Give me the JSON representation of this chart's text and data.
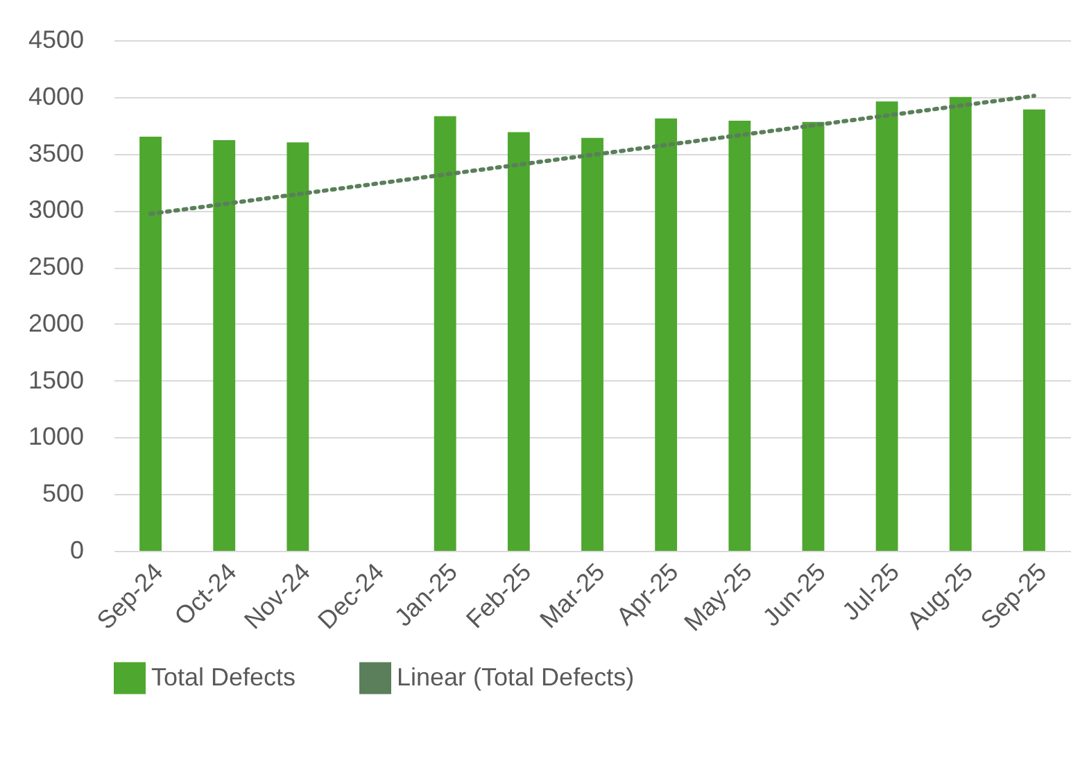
{
  "chart_data": {
    "type": "bar",
    "categories": [
      "Sep-24",
      "Oct-24",
      "Nov-24",
      "Dec-24",
      "Jan-25",
      "Feb-25",
      "Mar-25",
      "Apr-25",
      "May-25",
      "Jun-25",
      "Jul-25",
      "Aug-25",
      "Sep-25"
    ],
    "series": [
      {
        "name": "Total Defects",
        "color": "#4ea72e",
        "values": [
          3650,
          3620,
          3600,
          0,
          3830,
          3690,
          3640,
          3810,
          3790,
          3780,
          3960,
          4000,
          3890
        ]
      },
      {
        "name": "Linear (Total Defects)",
        "type": "line",
        "color": "#5a7f5a",
        "line_style": "dotted",
        "x": [
          "Sep-24",
          "Sep-25"
        ],
        "values": [
          2970,
          4010
        ]
      }
    ],
    "ylim": [
      0,
      4500
    ],
    "yticks": [
      0,
      500,
      1000,
      1500,
      2000,
      2500,
      3000,
      3500,
      4000,
      4500
    ],
    "grid": "y",
    "legend": "bottom"
  }
}
